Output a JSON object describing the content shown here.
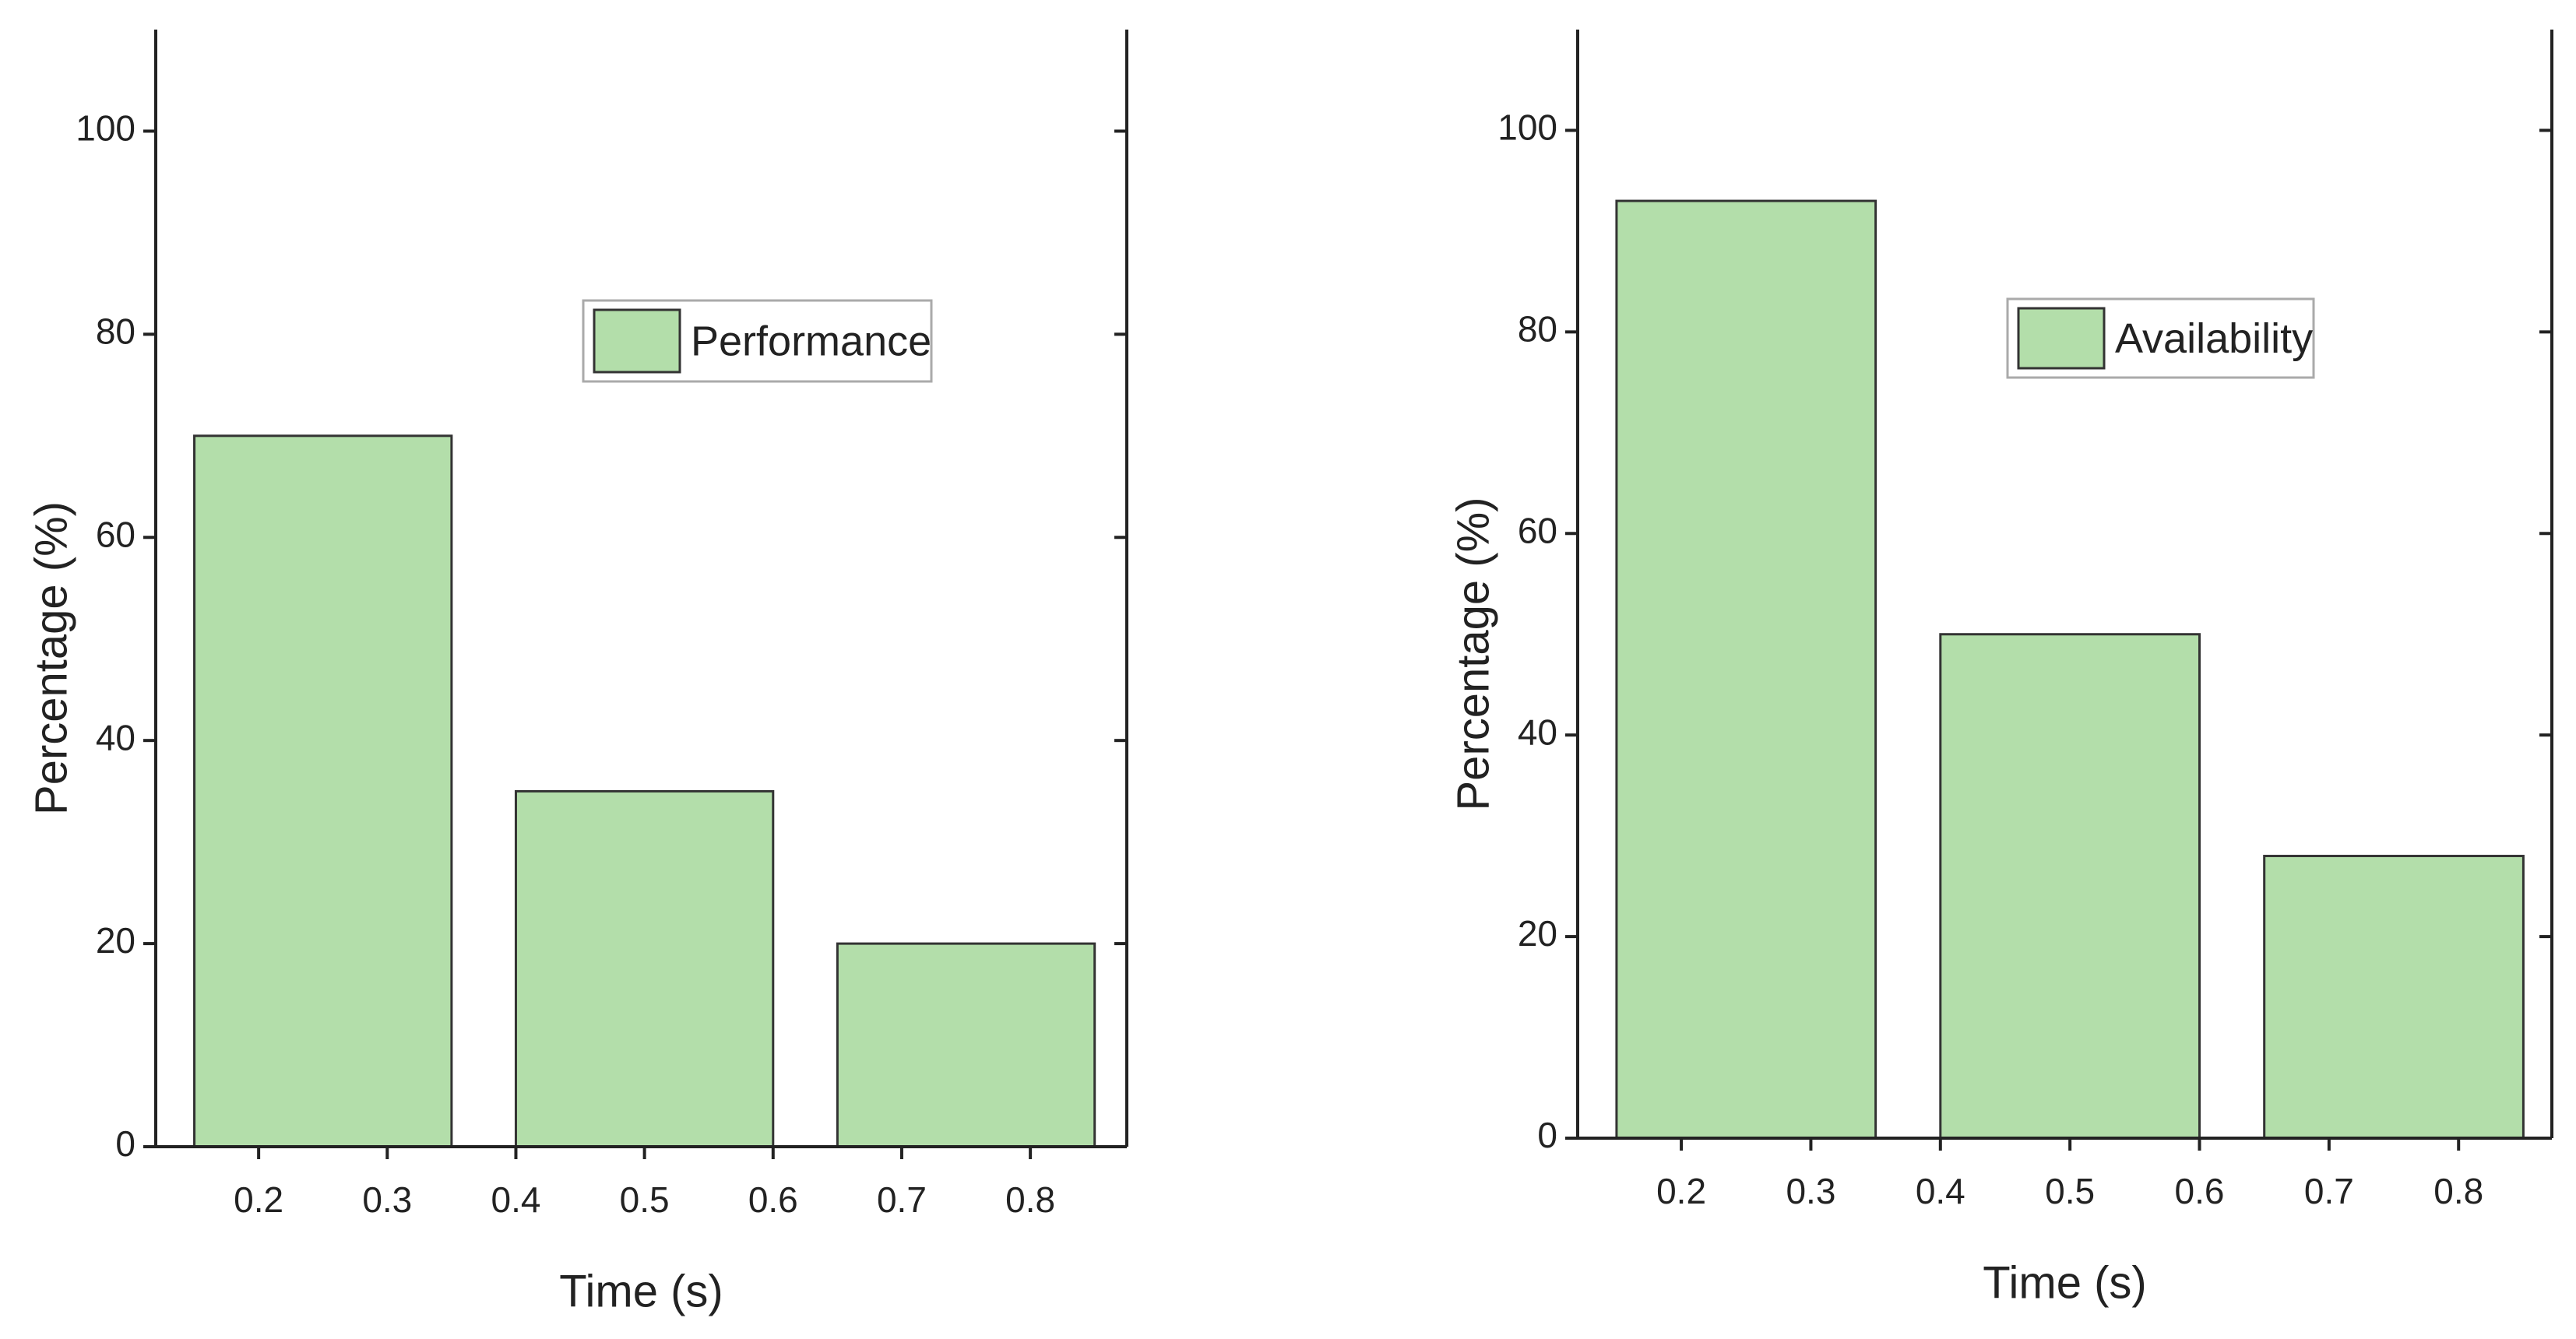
{
  "chart_data": [
    {
      "type": "bar",
      "xlabel": "Time (s)",
      "ylabel": "Percentage (%)",
      "x": [
        0.25,
        0.5,
        0.75
      ],
      "bar_width": 0.2,
      "series": [
        {
          "name": "Performance",
          "color": "#b3deaa",
          "values": [
            70,
            35,
            20
          ]
        }
      ],
      "xlim": [
        0.12,
        0.875
      ],
      "xticks": [
        0.2,
        0.3,
        0.4,
        0.5,
        0.6,
        0.7,
        0.8
      ],
      "ylim": [
        0,
        110
      ],
      "yticks": [
        0,
        20,
        40,
        60,
        80,
        100
      ]
    },
    {
      "type": "bar",
      "xlabel": "Time (s)",
      "ylabel": "Percentage (%)",
      "x": [
        0.25,
        0.5,
        0.75
      ],
      "bar_width": 0.2,
      "series": [
        {
          "name": "Availability",
          "color": "#b3deaa",
          "values": [
            93,
            50,
            28
          ]
        }
      ],
      "xlim": [
        0.12,
        0.872
      ],
      "xticks": [
        0.2,
        0.3,
        0.4,
        0.5,
        0.6,
        0.7,
        0.8
      ],
      "ylim": [
        0,
        110
      ],
      "yticks": [
        0,
        20,
        40,
        60,
        80,
        100
      ]
    }
  ]
}
